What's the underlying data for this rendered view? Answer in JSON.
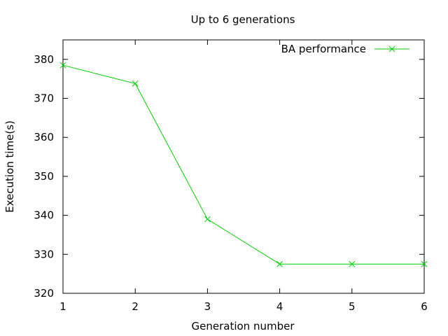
{
  "chart_data": {
    "type": "line",
    "title": "Up to 6 generations",
    "xlabel": "Generation number",
    "ylabel": "Execution time(s)",
    "xlim": [
      1,
      6
    ],
    "ylim": [
      320,
      385
    ],
    "xticks": [
      1,
      2,
      3,
      4,
      5,
      6
    ],
    "yticks": [
      320,
      330,
      340,
      350,
      360,
      370,
      380
    ],
    "grid": false,
    "legend_position": "top-right",
    "series": [
      {
        "name": "BA performance",
        "color": "#00cc00",
        "marker": "x",
        "x": [
          1,
          2,
          3,
          4,
          5,
          6
        ],
        "y": [
          378.5,
          373.8,
          339.0,
          327.5,
          327.5,
          327.5
        ]
      }
    ]
  }
}
